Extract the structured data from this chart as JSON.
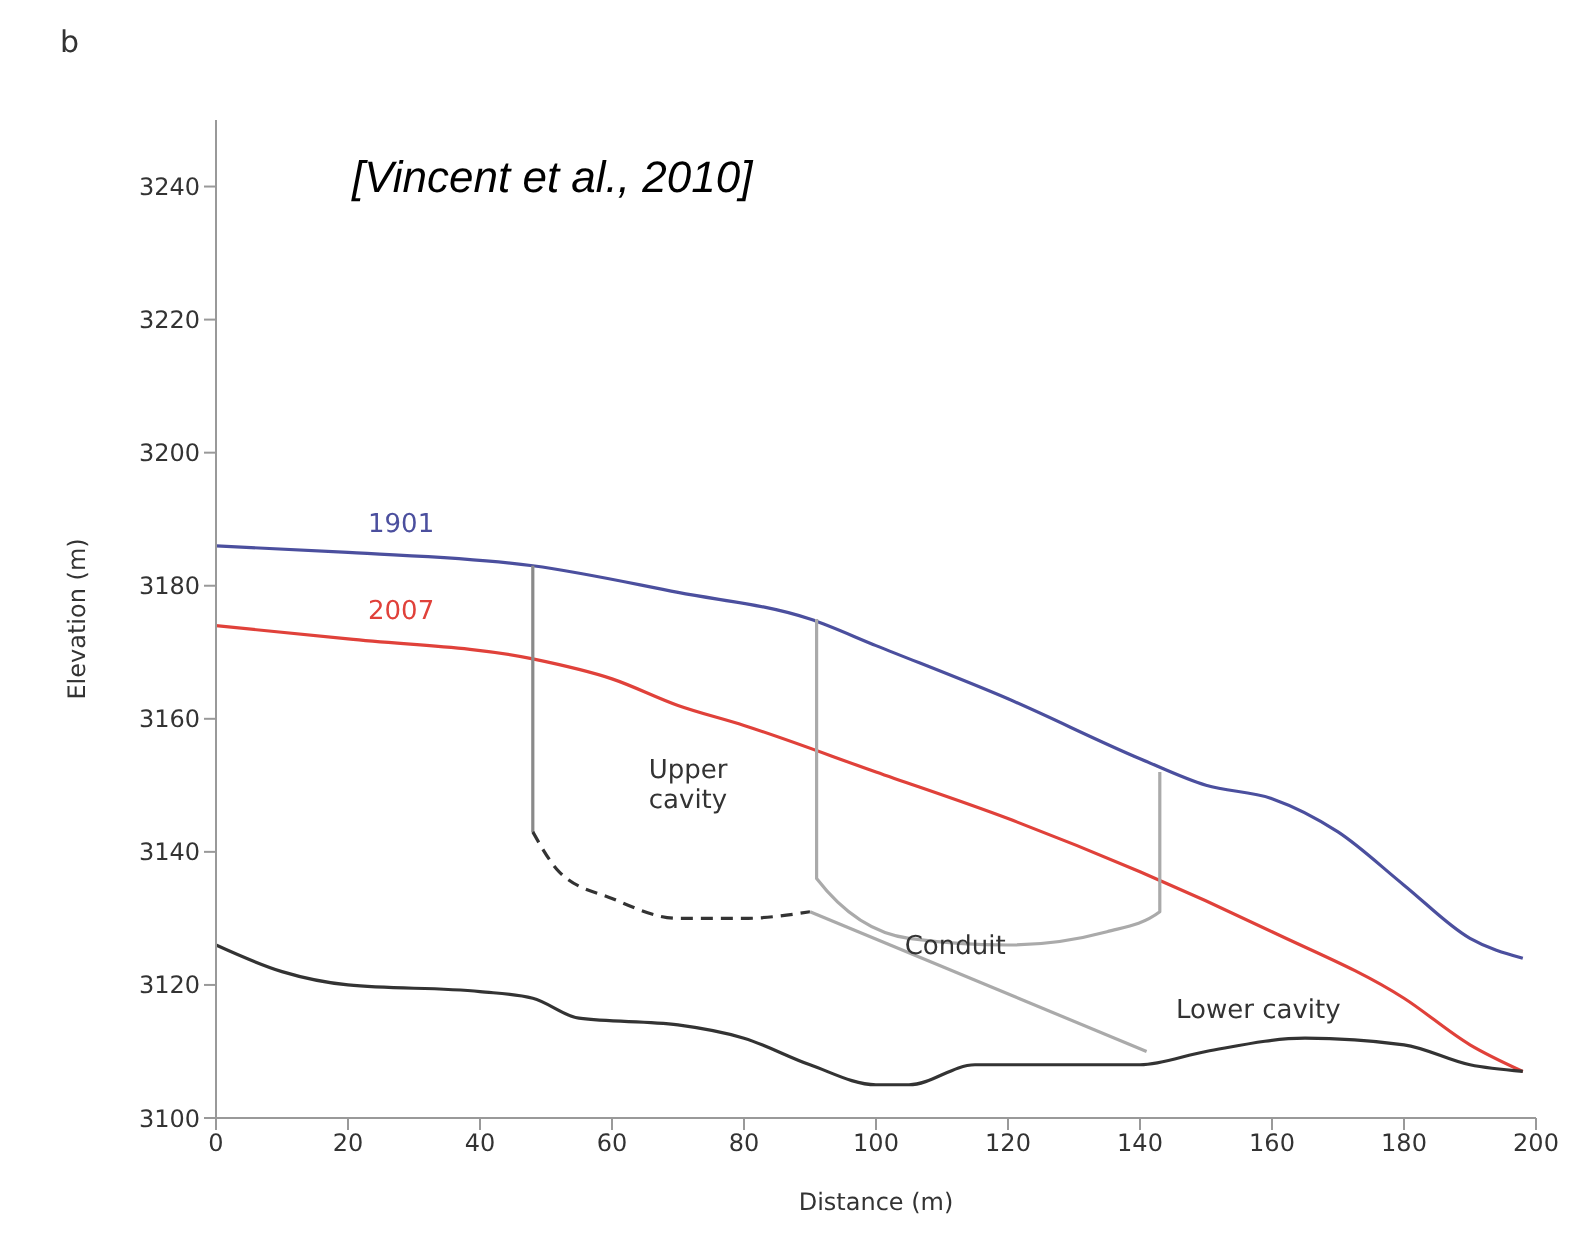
{
  "chart_data": {
    "type": "line",
    "xlabel": "Distance (m)",
    "ylabel": "Elevation (m)",
    "xlim": [
      0,
      200
    ],
    "xticks": [
      0,
      20,
      40,
      60,
      80,
      100,
      120,
      140,
      160,
      180,
      200
    ],
    "ylim": [
      3100,
      3250
    ],
    "yticks": [
      3100,
      3120,
      3140,
      3160,
      3180,
      3200,
      3220,
      3240
    ],
    "marker": "none",
    "annotations": [
      "b",
      "[Vincent et al., 2010]",
      "Upper cavity",
      "Lower cavity",
      {
        "text": "Conduit",
        "x": 112,
        "y": 3126
      }
    ],
    "series": [
      {
        "name": "1901",
        "color": "#4b4f9e",
        "x": [
          0,
          20,
          48,
          70,
          90,
          100,
          120,
          140,
          150,
          160,
          170,
          180,
          190,
          198
        ],
        "values": [
          3186,
          3185,
          3183,
          3179,
          3175,
          3171,
          3163,
          3154,
          3150,
          3148,
          3143,
          3135,
          3127,
          3124
        ]
      },
      {
        "name": "2007",
        "color": "#e0413a",
        "x": [
          0,
          20,
          48,
          60,
          70,
          80,
          100,
          120,
          140,
          160,
          180,
          190,
          198
        ],
        "values": [
          3174,
          3172,
          3169,
          3166,
          3162,
          3159,
          3152,
          3145,
          3137,
          3128,
          3118,
          3111,
          3107
        ]
      },
      {
        "color": "#333333",
        "x": [
          0,
          10,
          20,
          40,
          48,
          55,
          70,
          80,
          90,
          100,
          105,
          115,
          130,
          140,
          150,
          165,
          180,
          190,
          198
        ],
        "values": [
          3126,
          3122,
          3120,
          3119,
          3118,
          3115,
          3114,
          3112,
          3108,
          3105,
          3105,
          3108,
          3108,
          3108,
          3110,
          3112,
          3111,
          3108,
          3107
        ]
      },
      {
        "color": "#8a8a8a",
        "x": [
          48,
          48
        ],
        "values": [
          3183,
          3143
        ]
      },
      {
        "color": "#333333",
        "line_style": "dashed",
        "x": [
          48,
          52,
          60,
          70,
          80,
          90
        ],
        "values": [
          3143,
          3137,
          3133,
          3130,
          3130,
          3131
        ]
      },
      {
        "color": "#aaaaaa",
        "x": [
          91,
          91,
          105,
          120,
          135,
          143,
          143
        ],
        "values": [
          3175,
          3136,
          3127,
          3126,
          3128,
          3131,
          3152
        ]
      },
      {
        "color": "#aaaaaa",
        "x": [
          90,
          141
        ],
        "values": [
          3131,
          3110
        ]
      }
    ]
  }
}
